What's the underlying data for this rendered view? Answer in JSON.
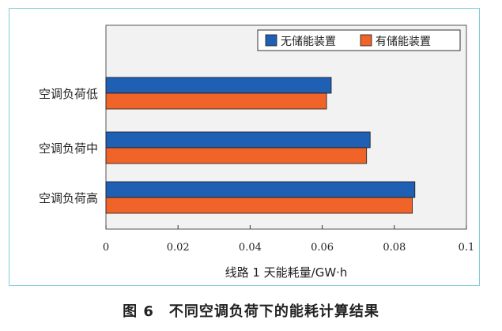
{
  "caption": "图 6　不同空调负荷下的能耗计算结果",
  "chart_data": {
    "type": "bar",
    "orientation": "horizontal",
    "categories": [
      "空调负荷低",
      "空调负荷中",
      "空调负荷高"
    ],
    "series": [
      {
        "name": "无储能装置",
        "values": [
          0.0625,
          0.0733,
          0.0857
        ],
        "color": "#1f5fb4"
      },
      {
        "name": "有储能装置",
        "values": [
          0.0612,
          0.0723,
          0.085
        ],
        "color": "#f0642a"
      }
    ],
    "xlabel": "线路 1 天能耗量/GW·h",
    "ylabel": "",
    "xlim": [
      0,
      0.1
    ],
    "xticks": [
      "0",
      "0.02",
      "0.04",
      "0.06",
      "0.08",
      "0.1"
    ],
    "grid": false,
    "legend": "top-right",
    "plot_background": "#f2f2f2"
  }
}
